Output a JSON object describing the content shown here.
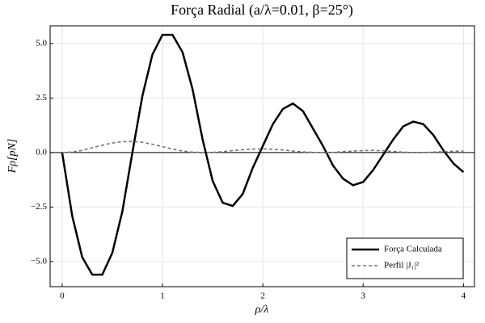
{
  "chart_data": {
    "type": "line",
    "title": "Força Radial (a/λ=0.01, β=25°)",
    "xlabel": "ρ/λ",
    "ylabel": "Fρ[pN]",
    "x": [
      0,
      0.1,
      0.2,
      0.3,
      0.4,
      0.5,
      0.6,
      0.7,
      0.8,
      0.9,
      1.0,
      1.1,
      1.2,
      1.3,
      1.4,
      1.5,
      1.6,
      1.7,
      1.8,
      1.9,
      2.0,
      2.1,
      2.2,
      2.3,
      2.4,
      2.5,
      2.6,
      2.7,
      2.8,
      2.9,
      3.0,
      3.1,
      3.2,
      3.3,
      3.4,
      3.5,
      3.6,
      3.7,
      3.8,
      3.9,
      4.0
    ],
    "series": [
      {
        "name": "Força Calculada",
        "color": "#000000",
        "dash": "solid",
        "values": [
          0,
          -2.9,
          -4.8,
          -5.6,
          -5.6,
          -4.6,
          -2.7,
          0.0,
          2.6,
          4.5,
          5.4,
          5.4,
          4.6,
          2.9,
          0.6,
          -1.3,
          -2.3,
          -2.45,
          -1.9,
          -0.7,
          0.3,
          1.3,
          2.0,
          2.25,
          1.9,
          1.1,
          0.3,
          -0.6,
          -1.2,
          -1.5,
          -1.35,
          -0.8,
          -0.1,
          0.6,
          1.2,
          1.42,
          1.3,
          0.8,
          0.1,
          -0.5,
          -0.9
        ]
      },
      {
        "name": "Perfil |J₁|²",
        "color": "#777777",
        "dash": "dashed",
        "values": [
          0,
          0.02,
          0.1,
          0.22,
          0.34,
          0.44,
          0.5,
          0.51,
          0.47,
          0.38,
          0.27,
          0.16,
          0.07,
          0.02,
          0.0,
          0.01,
          0.04,
          0.09,
          0.13,
          0.16,
          0.17,
          0.15,
          0.12,
          0.07,
          0.03,
          0.01,
          0.0,
          0.01,
          0.04,
          0.07,
          0.09,
          0.1,
          0.08,
          0.05,
          0.02,
          0.0,
          0.0,
          0.02,
          0.04,
          0.06,
          0.07
        ]
      }
    ],
    "xlim": [
      -0.12,
      4.11
    ],
    "ylim": [
      -6.15,
      5.81
    ],
    "xticks": [
      0,
      1,
      2,
      3,
      4
    ],
    "yticks": [
      {
        "value": -5,
        "label": "−5.0"
      },
      {
        "value": -2.5,
        "label": "−2.5"
      },
      {
        "value": 0,
        "label": "0.0"
      },
      {
        "value": 2.5,
        "label": "2.5"
      },
      {
        "value": 5,
        "label": "5.0"
      }
    ],
    "hline": 0,
    "grid": true,
    "legend": "lower right"
  }
}
